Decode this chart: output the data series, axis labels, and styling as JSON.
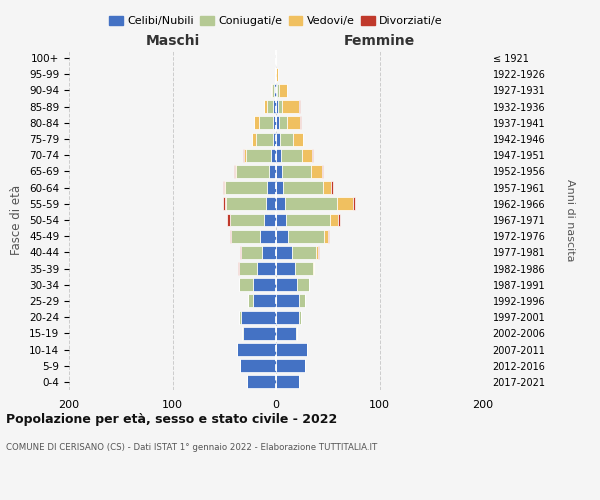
{
  "age_groups": [
    "0-4",
    "5-9",
    "10-14",
    "15-19",
    "20-24",
    "25-29",
    "30-34",
    "35-39",
    "40-44",
    "45-49",
    "50-54",
    "55-59",
    "60-64",
    "65-69",
    "70-74",
    "75-79",
    "80-84",
    "85-89",
    "90-94",
    "95-99",
    "100+"
  ],
  "birth_years": [
    "2017-2021",
    "2012-2016",
    "2007-2011",
    "2002-2006",
    "1997-2001",
    "1992-1996",
    "1987-1991",
    "1982-1986",
    "1977-1981",
    "1972-1976",
    "1967-1971",
    "1962-1966",
    "1957-1961",
    "1952-1956",
    "1947-1951",
    "1942-1946",
    "1937-1941",
    "1932-1936",
    "1927-1931",
    "1922-1926",
    "≤ 1921"
  ],
  "maschi": {
    "celibe": [
      28,
      35,
      38,
      32,
      34,
      22,
      22,
      18,
      14,
      15,
      12,
      10,
      9,
      7,
      5,
      3,
      3,
      3,
      2,
      1,
      0
    ],
    "coniugato": [
      0,
      0,
      0,
      1,
      2,
      5,
      14,
      18,
      20,
      28,
      32,
      38,
      40,
      32,
      24,
      16,
      13,
      6,
      2,
      0,
      0
    ],
    "vedovo": [
      0,
      0,
      0,
      0,
      0,
      0,
      0,
      0,
      0,
      0,
      0,
      1,
      1,
      1,
      2,
      4,
      5,
      3,
      1,
      0,
      0
    ],
    "divorziato": [
      0,
      0,
      0,
      0,
      0,
      0,
      0,
      1,
      1,
      1,
      3,
      2,
      1,
      1,
      1,
      0,
      0,
      0,
      0,
      0,
      0
    ]
  },
  "femmine": {
    "nubile": [
      22,
      28,
      30,
      19,
      22,
      22,
      20,
      18,
      15,
      12,
      10,
      9,
      7,
      6,
      5,
      4,
      3,
      2,
      1,
      0,
      0
    ],
    "coniugata": [
      0,
      0,
      0,
      1,
      2,
      6,
      12,
      18,
      24,
      34,
      42,
      50,
      38,
      28,
      20,
      12,
      8,
      4,
      2,
      0,
      0
    ],
    "vedova": [
      0,
      0,
      0,
      0,
      0,
      0,
      0,
      1,
      2,
      4,
      8,
      15,
      8,
      10,
      10,
      10,
      12,
      16,
      8,
      2,
      0
    ],
    "divorziata": [
      0,
      0,
      0,
      0,
      0,
      0,
      0,
      0,
      1,
      1,
      2,
      2,
      2,
      1,
      1,
      0,
      1,
      1,
      0,
      0,
      0
    ]
  },
  "colors": {
    "celibe": "#4472c4",
    "coniugato": "#b5c994",
    "vedovo": "#f0c060",
    "divorziato": "#c0392b"
  },
  "title": "Popolazione per età, sesso e stato civile - 2022",
  "subtitle": "COMUNE DI CERISANO (CS) - Dati ISTAT 1° gennaio 2022 - Elaborazione TUTTITALIA.IT",
  "label_maschi": "Maschi",
  "label_femmine": "Femmine",
  "ylabel_left": "Fasce di età",
  "ylabel_right": "Anni di nascita",
  "legend_labels": [
    "Celibi/Nubili",
    "Coniugati/e",
    "Vedovi/e",
    "Divorziati/e"
  ],
  "xlim": 200,
  "background_color": "#f5f5f5"
}
